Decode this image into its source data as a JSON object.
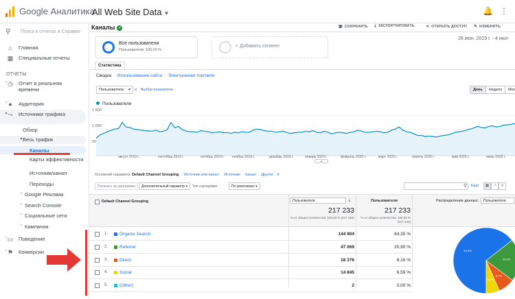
{
  "header": {
    "brand": "Google Аналитика",
    "account": "All Web Site Data"
  },
  "sidebar": {
    "search_placeholder": "Поиск в отчетах и Справке",
    "items": [
      {
        "label": "Главная",
        "icon": "home-icon"
      },
      {
        "label": "Специальные отчеты",
        "icon": "dashboard-icon"
      },
      {
        "section": "ОТЧЕТЫ"
      },
      {
        "label": "Отчет в реальном времени",
        "icon": "clock-icon"
      },
      {
        "label": "Аудитория",
        "icon": "person-icon"
      },
      {
        "label": "Источники трафика",
        "icon": "acquisition-icon"
      },
      {
        "label": "Обзор"
      },
      {
        "label": "Весь трафик"
      },
      {
        "label": "Каналы"
      },
      {
        "label": "Карты эффективности"
      },
      {
        "label": "Источник/канал"
      },
      {
        "label": "Переходы"
      },
      {
        "label": "Google Реклама"
      },
      {
        "label": "Search Console"
      },
      {
        "label": "Социальные сети"
      },
      {
        "label": "Кампании"
      },
      {
        "label": "Поведение",
        "icon": "behavior-icon"
      },
      {
        "label": "Конверсии",
        "icon": "flag-icon"
      }
    ]
  },
  "page": {
    "title": "Каналы",
    "actions": [
      "СОХРАНИТЬ",
      "ЭКСПОРТИРОВАТЬ",
      "ОТКРЫТЬ ДОСТУП",
      "ИЗМЕНИТЬ"
    ],
    "date_range": "28 июн. 2019 г. - 4 июл",
    "segment": {
      "title": "Все пользователи",
      "subtitle": "Пользователи: 100,00 %"
    },
    "add_segment": "+ Добавить сегмент",
    "tab": "Статистика",
    "subtabs": [
      "Сводка",
      "Использование сайта",
      "Электронная торговля"
    ],
    "metric": "Пользователи",
    "vs": "и",
    "select_metric": "Выбор показателя",
    "periods": [
      "День",
      "Неделя",
      "Месяц"
    ]
  },
  "chart_data": {
    "type": "area",
    "series": [
      {
        "name": "Пользователи",
        "color": "#058dc7"
      }
    ],
    "y_ticks": [
      "1 500",
      "1 000",
      "500"
    ],
    "ylim": [
      0,
      1700
    ],
    "x_ticks": [
      "август 2019 г.",
      "сентябрь 2019 г.",
      "октябрь 2019 г.",
      "ноябрь 2019 г.",
      "декабрь 2019 г.",
      "январь 2020 г.",
      "февраль 2020 г.",
      "март 2020 г.",
      "апрель 2020 г.",
      "май 2020 г.",
      "июнь 2020 г."
    ],
    "values": [
      650,
      780,
      840,
      900,
      950,
      1000,
      1020,
      1250,
      1080,
      1060,
      1000,
      980,
      960,
      940,
      930,
      920,
      960,
      900,
      920,
      980,
      1250,
      1050,
      1100,
      980,
      930,
      900,
      900,
      880,
      940,
      920,
      900,
      860,
      880,
      900,
      860,
      870,
      840,
      880,
      860,
      900,
      880,
      880,
      960,
      1000,
      980,
      940,
      920,
      920,
      880,
      900,
      920,
      870,
      840,
      860,
      880,
      880,
      920,
      900,
      940,
      880,
      860,
      920,
      880,
      820,
      860,
      880,
      860,
      840,
      880,
      900,
      960,
      920,
      880,
      880,
      900,
      920,
      900,
      860,
      880,
      960,
      1000,
      1080,
      960,
      900,
      880,
      820,
      760,
      760,
      720,
      740,
      720,
      700,
      740,
      760,
      780,
      820,
      880,
      900,
      920,
      960,
      1000,
      1040,
      1100,
      1060,
      1040,
      1100,
      1120,
      1080,
      1100,
      1150,
      1160,
      1180,
      1200
    ]
  },
  "table_controls": {
    "primary_dim_label": "Основной параметр:",
    "primary_dim": "Default Channel Grouping",
    "other_dims": [
      "Источник или канал",
      "Источник",
      "Канал",
      "Другое"
    ],
    "plot_rows": "Показать на диаграмме",
    "secondary_dim": "Дополнительный параметр",
    "sort_label": "Тип сортировки:",
    "sort_value": "По умолчанию",
    "more": "Ещё",
    "dim_header": "Default Channel Grouping",
    "col1_select": "Пользователи",
    "col2_header": "Пользователи",
    "col3_header": "Распределение данных:",
    "col3_select": "Пользователи",
    "total1": "217 233",
    "total1_pct": "% от общего количества: 100,00 % (217 233)",
    "total2": "217 233",
    "total2_pct": "% от общего количества: 100,00 % (217 233)"
  },
  "rows": [
    {
      "num": "1.",
      "name": "Organic Search",
      "users": "144 904",
      "pct": "64,35 %",
      "color": "#1a73e8"
    },
    {
      "num": "2.",
      "name": "Referral",
      "users": "47 069",
      "pct": "20,90 %",
      "color": "#3c9a3c"
    },
    {
      "num": "3.",
      "name": "Direct",
      "users": "18 376",
      "pct": "8,16 %",
      "color": "#e8591c"
    },
    {
      "num": "4.",
      "name": "Social",
      "users": "14 845",
      "pct": "6,59 %",
      "color": "#f2d600"
    },
    {
      "num": "5.",
      "name": "(Other)",
      "users": "2",
      "pct": "0,00 %",
      "color": "#2eb7d6"
    }
  ],
  "pie_labels": [
    "64,3%",
    "20,9%",
    "8,2%",
    "6,6%"
  ]
}
